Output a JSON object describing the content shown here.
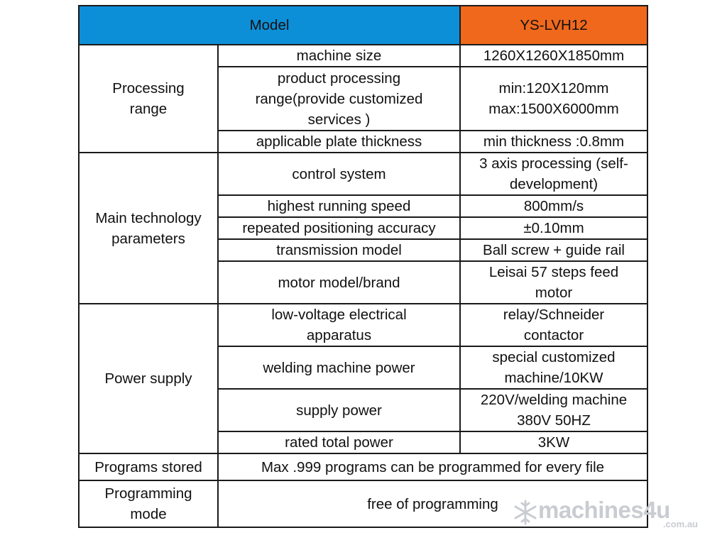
{
  "header": {
    "model_label": "Model",
    "model_value": "YS-LVH12"
  },
  "groups": {
    "processing": {
      "label": "Processing range",
      "rows": [
        {
          "param": "machine size",
          "value": "1260X1260X1850mm"
        },
        {
          "param": "product processing range(provide customized services )",
          "value": "min:120X120mm max:1500X6000mm"
        },
        {
          "param": "applicable plate thickness",
          "value": "min thickness :0.8mm"
        }
      ]
    },
    "technology": {
      "label": "Main technology parameters",
      "rows": [
        {
          "param": "control system",
          "value": "3 axis processing (self-development)"
        },
        {
          "param": "highest running speed",
          "value": "800mm/s"
        },
        {
          "param": "repeated positioning accuracy",
          "value": "±0.10mm"
        },
        {
          "param": "transmission model",
          "value": "Ball screw + guide rail"
        },
        {
          "param": "motor model/brand",
          "value": "Leisai 57 steps feed motor"
        }
      ]
    },
    "power": {
      "label": "Power supply",
      "rows": [
        {
          "param": "low-voltage electrical apparatus",
          "value": "relay/Schneider contactor"
        },
        {
          "param": "welding machine power",
          "value": "special customized machine/10KW"
        },
        {
          "param": "supply power",
          "value": "220V/welding machine 380V 50HZ"
        },
        {
          "param": "rated total power",
          "value": "3KW"
        }
      ]
    }
  },
  "programs_stored": {
    "label": "Programs stored",
    "value": "Max .999 programs can be programmed for every file"
  },
  "programming_mode": {
    "label": "Programming mode",
    "value": "free of programming"
  },
  "watermark": {
    "brand": "machines4u",
    "domain": ".com.au",
    "icon": "snowflake-icon"
  },
  "colors": {
    "header_blue": "#0d8fd8",
    "header_orange": "#f0681c",
    "border": "#1a1a1a",
    "watermark": "#c9ccd1"
  }
}
